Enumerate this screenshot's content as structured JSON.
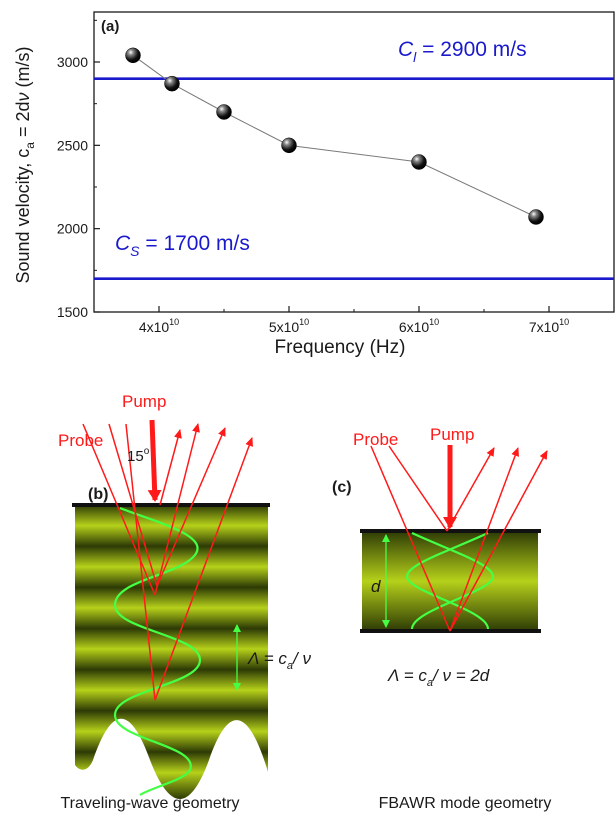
{
  "colors": {
    "accent_line": "#1a1acc",
    "data_line": "#7a7a7a",
    "beam": "#ff1a1a",
    "wave": "#44ff44",
    "text_dark": "#1a1a1a",
    "slab_dark": "#2d3a05",
    "slab_light": "#b6d11a"
  },
  "chart_data": {
    "type": "scatter",
    "panel_label": "(a)",
    "xlabel": "Frequency (Hz)",
    "ylabel": "Sound velocity, c",
    "ylabel_sub": "a",
    "ylabel_tail": " = 2d",
    "ylabel_nu": "ν",
    "ylabel_unit": " (m/s)",
    "xlim": [
      35000000000,
      75000000000
    ],
    "ylim": [
      1500,
      3300
    ],
    "x_ticks": [
      {
        "value": 40000000000,
        "base": "4x10",
        "exp": "10"
      },
      {
        "value": 50000000000,
        "base": "5x10",
        "exp": "10"
      },
      {
        "value": 60000000000,
        "base": "6x10",
        "exp": "10"
      },
      {
        "value": 70000000000,
        "base": "7x10",
        "exp": "10"
      }
    ],
    "y_ticks": [
      1500,
      2000,
      2500,
      3000
    ],
    "series": [
      {
        "marker": "black-sphere",
        "connected": true,
        "x": [
          38000000000,
          41000000000,
          45000000000,
          50000000000,
          60000000000,
          69000000000
        ],
        "y": [
          3040,
          2870,
          2700,
          2500,
          2400,
          2070
        ]
      }
    ],
    "reference_lines": [
      {
        "y": 2900,
        "symbol": "C",
        "sub": "l",
        "text": " = 2900 m/s"
      },
      {
        "y": 1700,
        "symbol": "C",
        "sub": "S",
        "text": " = 1700 m/s"
      }
    ],
    "grid": false,
    "legend": "none"
  },
  "diagram_b": {
    "panel_label": "(b)",
    "probe_label": "Probe",
    "pump_label": "Pump",
    "angle_label": "15",
    "angle_unit": "o",
    "lambda_symbol": "Λ = c",
    "lambda_sub": "a",
    "lambda_tail": "/ ν",
    "caption": "Traveling-wave geometry"
  },
  "diagram_c": {
    "panel_label": "(c)",
    "probe_label": "Probe",
    "pump_label": "Pump",
    "d_label": "d",
    "lambda_symbol": "Λ = c",
    "lambda_sub": "a",
    "lambda_tail": "/ ν = 2d",
    "caption": "FBAWR mode geometry"
  }
}
